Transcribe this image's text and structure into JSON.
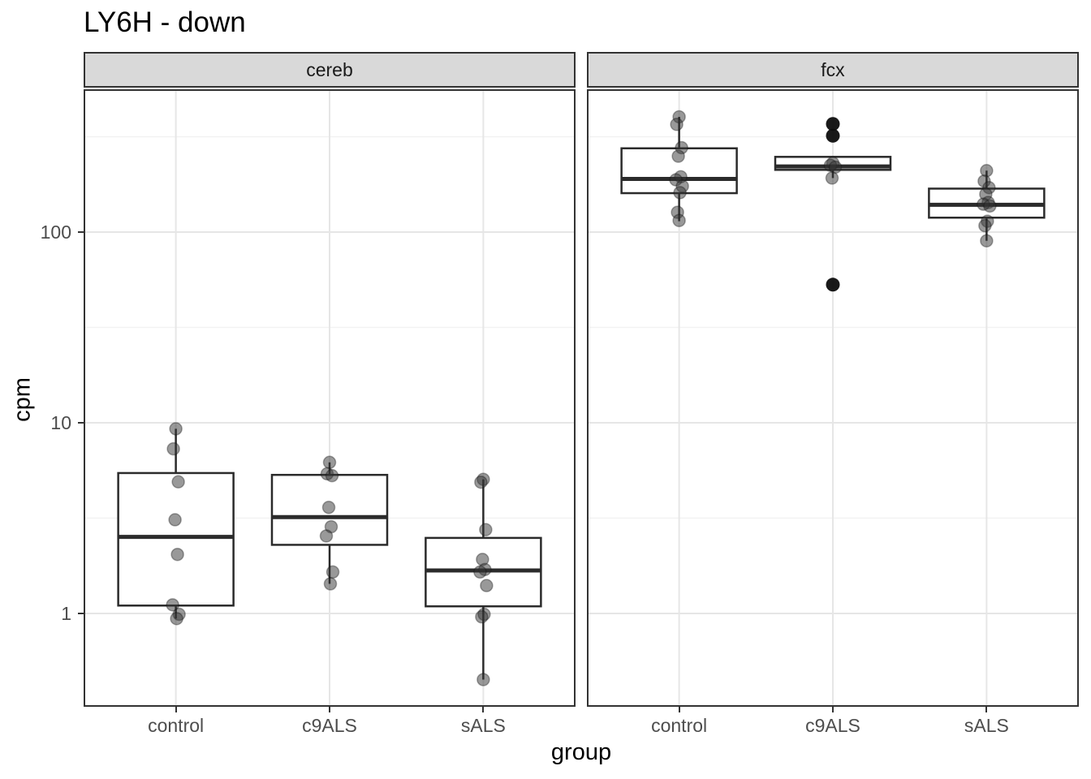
{
  "chart_data": {
    "type": "boxplot",
    "title": "LY6H - down",
    "xlabel": "group",
    "ylabel": "cpm",
    "y_scale": "log10",
    "y_ticks": [
      1,
      10,
      100
    ],
    "y_minor_ticks": [
      0.316,
      3.162,
      31.62,
      316.2
    ],
    "ylim": [
      0.33,
      560
    ],
    "categories": [
      "control",
      "c9ALS",
      "sALS"
    ],
    "legend": false,
    "grid": true,
    "facets": [
      {
        "label": "cereb",
        "groups": [
          {
            "category": "control",
            "q1": 1.1,
            "median": 2.52,
            "q3": 5.45,
            "whisker_low": 0.94,
            "whisker_high": 9.3,
            "points": [
              9.3,
              7.3,
              4.9,
              3.1,
              2.04,
              1.11,
              0.99,
              0.94
            ],
            "outliers": []
          },
          {
            "category": "c9ALS",
            "q1": 2.29,
            "median": 3.2,
            "q3": 5.33,
            "whisker_low": 1.43,
            "whisker_high": 6.2,
            "points": [
              6.2,
              5.4,
              5.28,
              3.6,
              2.85,
              2.55,
              1.65,
              1.43
            ],
            "outliers": []
          },
          {
            "category": "sALS",
            "q1": 1.09,
            "median": 1.68,
            "q3": 2.49,
            "whisker_low": 0.45,
            "whisker_high": 5.05,
            "points": [
              5.05,
              4.88,
              2.75,
              1.92,
              1.7,
              1.65,
              1.4,
              0.99,
              0.96,
              0.45
            ],
            "outliers": []
          }
        ]
      },
      {
        "label": "fcx",
        "groups": [
          {
            "category": "control",
            "q1": 160,
            "median": 190,
            "q3": 275,
            "whisker_low": 114,
            "whisker_high": 402,
            "points": [
              402,
              367,
              277,
              250,
              195,
              188,
              174,
              161,
              127,
              115
            ],
            "outliers": []
          },
          {
            "category": "c9ALS",
            "q1": 212,
            "median": 221,
            "q3": 248,
            "whisker_low": 192,
            "whisker_high": 248,
            "points": [
              230,
              224,
              219,
              192
            ],
            "outliers": [
              369,
              320,
              53
            ]
          },
          {
            "category": "sALS",
            "q1": 119,
            "median": 139,
            "q3": 169,
            "whisker_low": 90,
            "whisker_high": 210,
            "points": [
              210,
              185,
              171,
              158,
              143,
              140,
              137,
              114,
              108,
              90
            ],
            "outliers": []
          }
        ]
      }
    ],
    "style": {
      "box_color": "#2b2b2b",
      "point_color": "#333333",
      "point_opacity": 0.5,
      "outlier_color": "#0d0d0d",
      "grid_major_color": "#e6e6e6",
      "grid_minor_color": "#f2f2f2",
      "strip_fill": "#d9d9d9",
      "strip_border": "#333333",
      "panel_border": "#333333",
      "tick_label_color": "#4d4d4d"
    }
  }
}
